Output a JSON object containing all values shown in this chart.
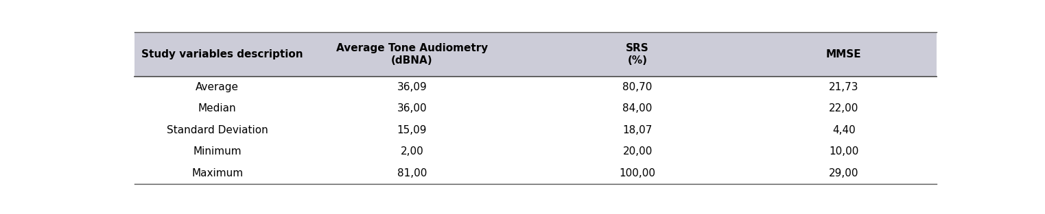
{
  "header_col": "Study variables description",
  "headers": [
    "Average Tone Audiometry\n(dBNA)",
    "SRS\n(%)",
    "MMSE"
  ],
  "rows": [
    [
      "Average",
      "36,09",
      "80,70",
      "21,73"
    ],
    [
      "Median",
      "36,00",
      "84,00",
      "22,00"
    ],
    [
      "Standard Deviation",
      "15,09",
      "18,07",
      "4,40"
    ],
    [
      "Minimum",
      "2,00",
      "20,00",
      "10,00"
    ],
    [
      "Maximum",
      "81,00",
      "100,00",
      "29,00"
    ]
  ],
  "header_bg": "#ccccd8",
  "header_text_color": "#000000",
  "body_bg": "#ffffff",
  "body_text_color": "#000000",
  "line_color": "#555555",
  "header_fontsize": 11,
  "body_fontsize": 11,
  "figsize": [
    15.23,
    3.13
  ],
  "dpi": 100
}
